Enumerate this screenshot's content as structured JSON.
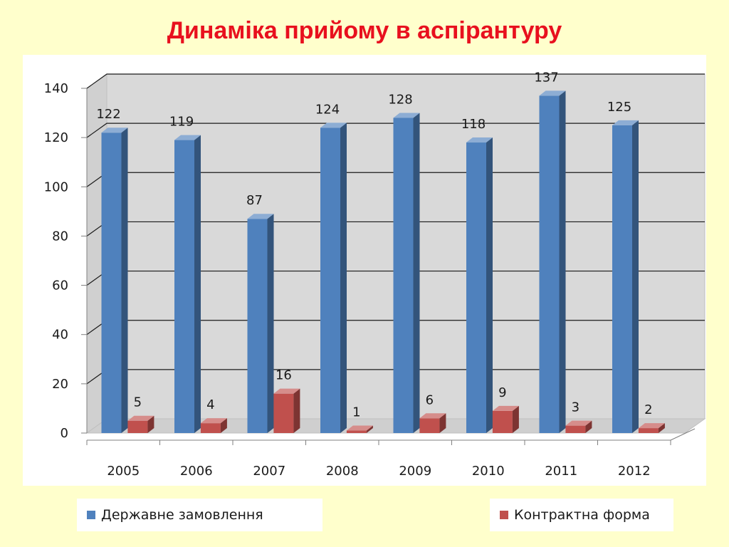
{
  "title": "Динаміка прийому в аспірантуру",
  "chart_data": {
    "type": "bar",
    "categories": [
      "2005",
      "2006",
      "2007",
      "2008",
      "2009",
      "2010",
      "2011",
      "2012"
    ],
    "series": [
      {
        "name": "Державне замовлення",
        "color": "#4f81bd",
        "values": [
          122,
          119,
          87,
          124,
          128,
          118,
          137,
          125
        ]
      },
      {
        "name": "Контрактна форма",
        "color": "#c0504d",
        "values": [
          5,
          4,
          16,
          1,
          6,
          9,
          3,
          2
        ]
      }
    ],
    "ylim": [
      0,
      140
    ],
    "yticks": [
      "0",
      "20",
      "40",
      "60",
      "80",
      "100",
      "120",
      "140"
    ],
    "grid": true,
    "legend_position": "bottom",
    "style": "3d-clustered-column"
  }
}
